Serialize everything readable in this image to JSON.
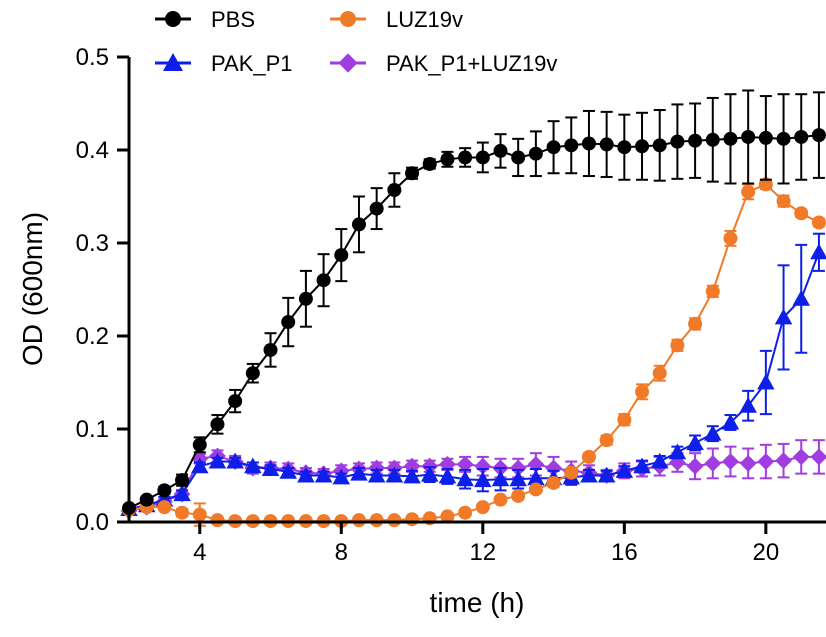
{
  "chart_data": {
    "type": "line",
    "xlabel": "time (h)",
    "ylabel": "OD (600nm)",
    "xlim": [
      2,
      21.7
    ],
    "ylim": [
      0,
      0.5
    ],
    "x_ticks": [
      4,
      8,
      12,
      16,
      20
    ],
    "y_ticks": [
      0.0,
      0.1,
      0.2,
      0.3,
      0.4,
      0.5
    ],
    "y_tick_labels": [
      "0.0",
      "0.1",
      "0.2",
      "0.3",
      "0.4",
      "0.5"
    ],
    "legend_placement": "top-left",
    "x": [
      2.0,
      2.5,
      3.0,
      3.5,
      4.0,
      4.5,
      5.0,
      5.5,
      6.0,
      6.5,
      7.0,
      7.5,
      8.0,
      8.5,
      9.0,
      9.5,
      10.0,
      10.5,
      11.0,
      11.5,
      12.0,
      12.5,
      13.0,
      13.5,
      14.0,
      14.5,
      15.0,
      15.5,
      16.0,
      16.5,
      17.0,
      17.5,
      18.0,
      18.5,
      19.0,
      19.5,
      20.0,
      20.5,
      21.0,
      21.5
    ],
    "series": [
      {
        "name": "PBS",
        "color": "#000000",
        "marker": "circle",
        "values": [
          0.015,
          0.024,
          0.034,
          0.045,
          0.083,
          0.105,
          0.13,
          0.16,
          0.185,
          0.215,
          0.24,
          0.26,
          0.287,
          0.32,
          0.337,
          0.357,
          0.375,
          0.385,
          0.39,
          0.392,
          0.392,
          0.399,
          0.392,
          0.396,
          0.403,
          0.405,
          0.407,
          0.406,
          0.403,
          0.404,
          0.405,
          0.409,
          0.41,
          0.411,
          0.412,
          0.414,
          0.413,
          0.412,
          0.414,
          0.416
        ],
        "errors": [
          0.003,
          0.003,
          0.004,
          0.006,
          0.008,
          0.01,
          0.012,
          0.01,
          0.018,
          0.026,
          0.03,
          0.028,
          0.028,
          0.03,
          0.022,
          0.018,
          0.006,
          0.005,
          0.008,
          0.01,
          0.016,
          0.018,
          0.02,
          0.024,
          0.028,
          0.03,
          0.035,
          0.035,
          0.035,
          0.036,
          0.038,
          0.04,
          0.04,
          0.045,
          0.048,
          0.05,
          0.045,
          0.048,
          0.046,
          0.046
        ]
      },
      {
        "name": "LUZ19v",
        "color": "#f07a28",
        "marker": "circle",
        "values": [
          0.013,
          0.016,
          0.016,
          0.01,
          0.008,
          0.002,
          0.001,
          0.001,
          0.001,
          0.001,
          0.001,
          0.001,
          0.001,
          0.002,
          0.002,
          0.002,
          0.003,
          0.004,
          0.006,
          0.01,
          0.016,
          0.024,
          0.028,
          0.035,
          0.042,
          0.053,
          0.07,
          0.088,
          0.11,
          0.14,
          0.16,
          0.19,
          0.213,
          0.248,
          0.305,
          0.355,
          0.363,
          0.345,
          0.332,
          0.322
        ],
        "errors": [
          0.002,
          0.003,
          0.003,
          0.004,
          0.012,
          0.002,
          0.001,
          0.001,
          0.001,
          0.001,
          0.001,
          0.001,
          0.001,
          0.001,
          0.001,
          0.001,
          0.001,
          0.001,
          0.002,
          0.002,
          0.002,
          0.003,
          0.003,
          0.003,
          0.004,
          0.004,
          0.004,
          0.005,
          0.006,
          0.008,
          0.008,
          0.006,
          0.006,
          0.006,
          0.008,
          0.008,
          0.005,
          0.006,
          0.004,
          0.004
        ]
      },
      {
        "name": "PAK_P1",
        "color": "#0d1fe8",
        "marker": "triangle",
        "values": [
          0.014,
          0.018,
          0.024,
          0.03,
          0.06,
          0.065,
          0.065,
          0.06,
          0.057,
          0.054,
          0.05,
          0.05,
          0.048,
          0.052,
          0.05,
          0.05,
          0.049,
          0.051,
          0.049,
          0.046,
          0.045,
          0.046,
          0.046,
          0.047,
          0.047,
          0.048,
          0.05,
          0.05,
          0.055,
          0.06,
          0.065,
          0.075,
          0.085,
          0.095,
          0.107,
          0.125,
          0.15,
          0.22,
          0.24,
          0.29
        ],
        "errors": [
          0.002,
          0.002,
          0.003,
          0.004,
          0.004,
          0.004,
          0.004,
          0.004,
          0.004,
          0.004,
          0.004,
          0.004,
          0.004,
          0.006,
          0.006,
          0.006,
          0.006,
          0.008,
          0.008,
          0.01,
          0.012,
          0.012,
          0.01,
          0.01,
          0.008,
          0.008,
          0.006,
          0.005,
          0.005,
          0.006,
          0.006,
          0.006,
          0.008,
          0.008,
          0.008,
          0.016,
          0.034,
          0.056,
          0.058,
          0.02
        ]
      },
      {
        "name": "PAK_P1+LUZ19v",
        "color": "#a03ce0",
        "marker": "diamond",
        "values": [
          0.012,
          0.016,
          0.022,
          0.03,
          0.068,
          0.071,
          0.065,
          0.058,
          0.058,
          0.057,
          0.053,
          0.052,
          0.055,
          0.057,
          0.058,
          0.058,
          0.06,
          0.06,
          0.062,
          0.062,
          0.06,
          0.058,
          0.058,
          0.062,
          0.058,
          0.055,
          0.053,
          0.05,
          0.055,
          0.057,
          0.06,
          0.064,
          0.06,
          0.063,
          0.065,
          0.063,
          0.065,
          0.066,
          0.07,
          0.07
        ],
        "errors": [
          0.002,
          0.002,
          0.003,
          0.004,
          0.005,
          0.006,
          0.006,
          0.006,
          0.006,
          0.006,
          0.005,
          0.005,
          0.006,
          0.006,
          0.006,
          0.006,
          0.006,
          0.006,
          0.006,
          0.008,
          0.01,
          0.01,
          0.01,
          0.012,
          0.012,
          0.01,
          0.008,
          0.006,
          0.008,
          0.008,
          0.01,
          0.01,
          0.014,
          0.016,
          0.016,
          0.016,
          0.018,
          0.018,
          0.018,
          0.018
        ]
      }
    ],
    "legend": [
      {
        "name": "PBS",
        "color": "#000000",
        "marker": "circle"
      },
      {
        "name": "LUZ19v",
        "color": "#f07a28",
        "marker": "circle"
      },
      {
        "name": "PAK_P1",
        "color": "#0d1fe8",
        "marker": "triangle"
      },
      {
        "name": "PAK_P1+LUZ19v",
        "color": "#a03ce0",
        "marker": "diamond"
      }
    ]
  }
}
